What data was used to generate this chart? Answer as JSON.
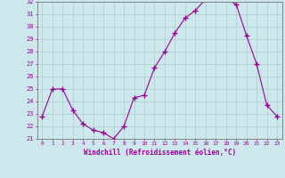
{
  "x": [
    0,
    1,
    2,
    3,
    4,
    5,
    6,
    7,
    8,
    9,
    10,
    11,
    12,
    13,
    14,
    15,
    16,
    17,
    18,
    19,
    20,
    21,
    22,
    23
  ],
  "y": [
    22.8,
    25.0,
    25.0,
    23.3,
    22.2,
    21.7,
    21.5,
    21.0,
    22.0,
    24.3,
    24.5,
    26.7,
    28.0,
    29.5,
    30.7,
    31.3,
    32.2,
    32.2,
    32.2,
    31.8,
    29.3,
    27.0,
    23.7,
    22.8
  ],
  "ylim": [
    21,
    32
  ],
  "yticks": [
    21,
    22,
    23,
    24,
    25,
    26,
    27,
    28,
    29,
    30,
    31,
    32
  ],
  "xlabel": "Windchill (Refroidissement éolien,°C)",
  "line_color": "#990099",
  "marker_color": "#990099",
  "bg_color": "#cce8ec",
  "grid_color": "#aacccc",
  "title_color": "#990099",
  "axis_color": "#777777",
  "tick_color": "#990099",
  "figsize": [
    3.2,
    2.0
  ],
  "dpi": 100
}
